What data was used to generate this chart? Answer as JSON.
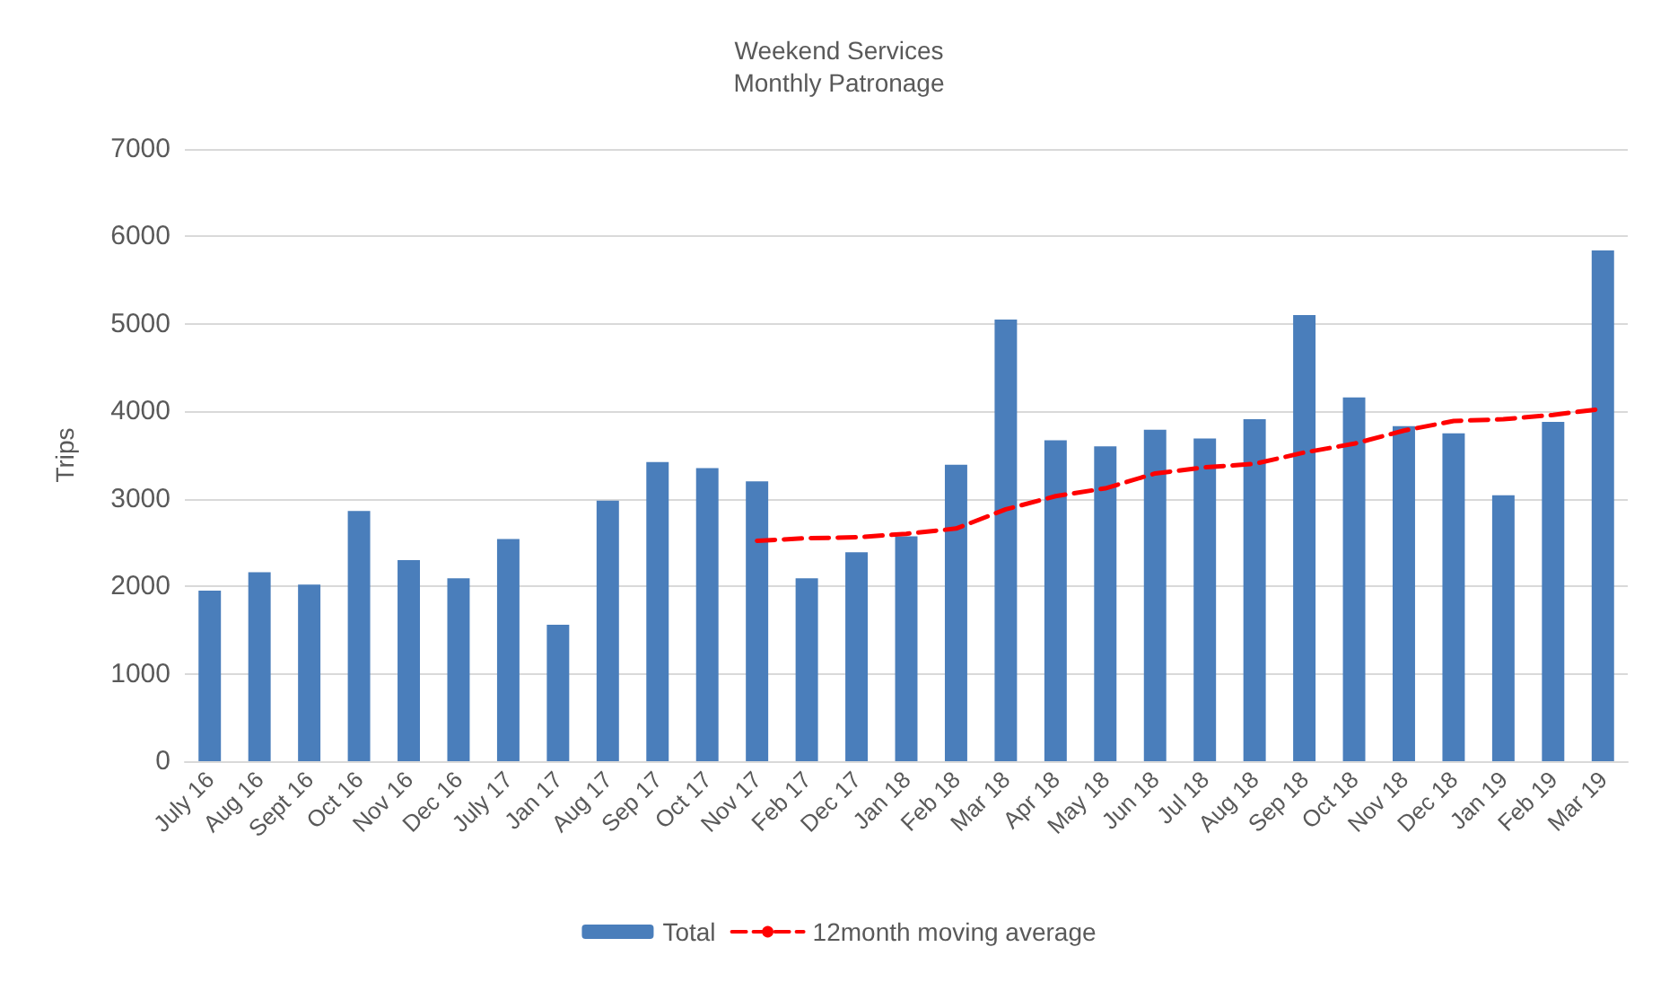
{
  "chart_data": {
    "type": "bar",
    "title": "Weekend Services\nMonthly Patronage",
    "ylabel": "Trips",
    "categories": [
      "July 16",
      "Aug 16",
      "Sept 16",
      "Oct 16",
      "Nov 16",
      "Dec 16",
      "July 17",
      "Jan 17",
      "Aug 17",
      "Sep 17",
      "Oct 17",
      "Nov 17",
      "Feb 17",
      "Dec 17",
      "Jan 18",
      "Feb 18",
      "Mar 18",
      "Apr 18",
      "May 18",
      "Jun 18",
      "Jul 18",
      "Aug 18",
      "Sep 18",
      "Oct 18",
      "Nov 18",
      "Dec 18",
      "Jan 19",
      "Feb 19",
      "Mar 19"
    ],
    "series": [
      {
        "name": "Total",
        "color": "#4a7ebb",
        "values": [
          1950,
          2160,
          2020,
          2860,
          2300,
          2090,
          2540,
          1560,
          2980,
          3420,
          3350,
          3200,
          2090,
          2390,
          2570,
          3390,
          5050,
          3670,
          3600,
          3790,
          3690,
          3910,
          5100,
          4160,
          3830,
          3750,
          3040,
          3880,
          5840
        ]
      },
      {
        "name": "12month moving average",
        "type": "line",
        "color": "#ff0000",
        "line_style": "dashed",
        "marker": "none",
        "values": [
          null,
          null,
          null,
          null,
          null,
          null,
          null,
          null,
          null,
          null,
          null,
          2520,
          2550,
          2560,
          2600,
          2660,
          2880,
          3030,
          3120,
          3290,
          3360,
          3400,
          3530,
          3630,
          3780,
          3890,
          3910,
          3960,
          4030
        ]
      }
    ],
    "ylim": [
      0,
      7000
    ],
    "yticks": [
      0,
      1000,
      2000,
      3000,
      4000,
      5000,
      6000,
      7000
    ],
    "grid": "y",
    "legend": "bottom"
  }
}
